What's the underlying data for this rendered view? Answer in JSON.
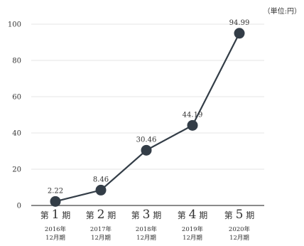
{
  "chart_data": {
    "type": "line",
    "unit": "（単位:円）",
    "categories": [
      {
        "prefix": "第",
        "num": "1",
        "suffix": "期",
        "year": "2016年",
        "period": "12月期"
      },
      {
        "prefix": "第",
        "num": "2",
        "suffix": "期",
        "year": "2017年",
        "period": "12月期"
      },
      {
        "prefix": "第",
        "num": "3",
        "suffix": "期",
        "year": "2018年",
        "period": "12月期"
      },
      {
        "prefix": "第",
        "num": "4",
        "suffix": "期",
        "year": "2019年",
        "period": "12月期"
      },
      {
        "prefix": "第",
        "num": "5",
        "suffix": "期",
        "year": "2020年",
        "period": "12月期"
      }
    ],
    "values": [
      2.22,
      8.46,
      30.46,
      44.19,
      94.99
    ],
    "value_labels": [
      "2.22",
      "8.46",
      "30.46",
      "44.19",
      "94.99"
    ],
    "yticks": [
      "0",
      "20",
      "40",
      "60",
      "80",
      "100"
    ],
    "ylim": [
      0,
      100
    ],
    "grid": true,
    "colors": {
      "line": "#333d47",
      "marker": "#333d47",
      "grid": "#e6e6e6",
      "axis": "#444444"
    }
  }
}
